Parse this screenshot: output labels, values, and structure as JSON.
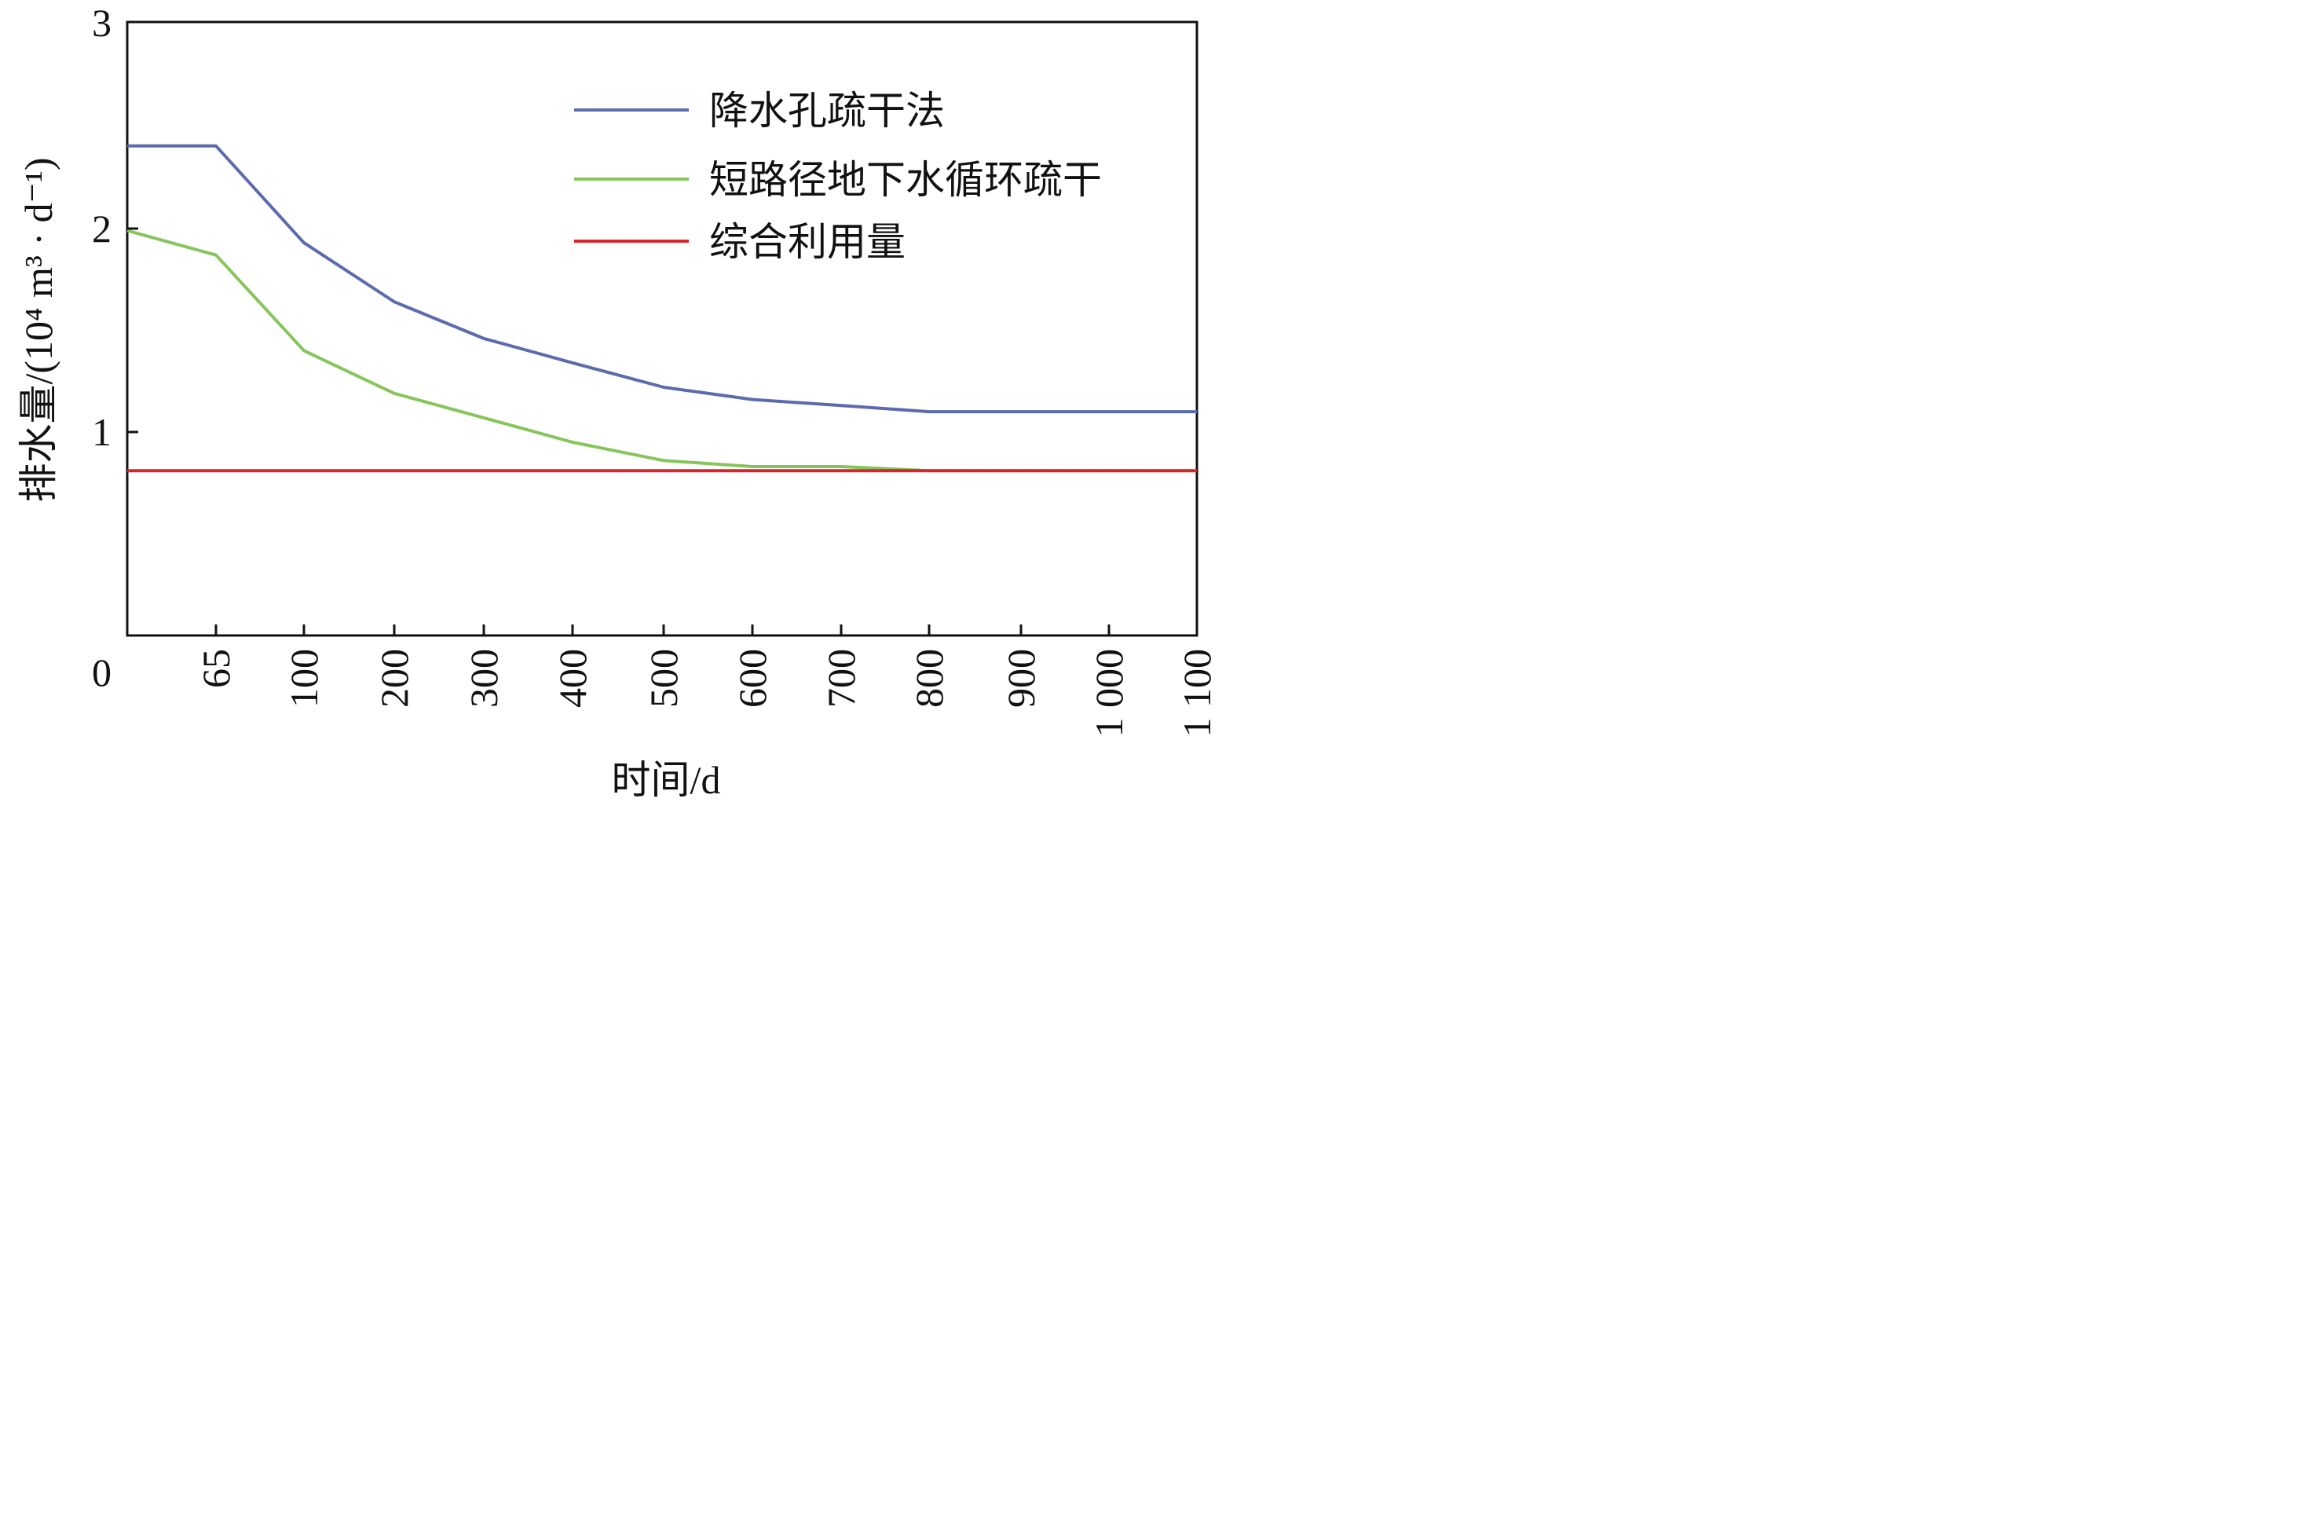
{
  "chart_data": {
    "type": "line",
    "xlabel": "时间/d",
    "ylabel": "排水量/(10⁴ m³ · d⁻¹)",
    "ylim": [
      0,
      3
    ],
    "yticks": [
      {
        "value": 0,
        "label": "0"
      },
      {
        "value": 1,
        "label": "1"
      },
      {
        "value": 2,
        "label": "2"
      },
      {
        "value": 3,
        "label": "3"
      }
    ],
    "xticks": [
      {
        "label": "65"
      },
      {
        "label": "100"
      },
      {
        "label": "200"
      },
      {
        "label": "300"
      },
      {
        "label": "400"
      },
      {
        "label": "500"
      },
      {
        "label": "600"
      },
      {
        "label": "700"
      },
      {
        "label": "800"
      },
      {
        "label": "900"
      },
      {
        "label": "1 000"
      },
      {
        "label": "1 100"
      }
    ],
    "x_positions": [
      0,
      65,
      100,
      200,
      300,
      400,
      500,
      600,
      700,
      800,
      900,
      1000,
      1100
    ],
    "grid": false,
    "legend_position": "top-right",
    "series": [
      {
        "name": "降水孔疏干法",
        "color": "#5b6bad",
        "values": [
          2.4,
          2.4,
          1.93,
          1.64,
          1.46,
          1.34,
          1.22,
          1.16,
          1.13,
          1.1,
          1.1,
          1.1,
          1.1
        ]
      },
      {
        "name": "短路径地下水循环疏干",
        "color": "#86c55a",
        "values": [
          1.99,
          1.87,
          1.4,
          1.19,
          1.07,
          0.95,
          0.86,
          0.83,
          0.83,
          0.81,
          0.81,
          0.81,
          0.81
        ]
      },
      {
        "name": "综合利用量",
        "color": "#d9242c",
        "values": [
          0.81,
          0.81,
          0.81,
          0.81,
          0.81,
          0.81,
          0.81,
          0.81,
          0.81,
          0.81,
          0.81,
          0.81,
          0.81
        ]
      }
    ]
  }
}
